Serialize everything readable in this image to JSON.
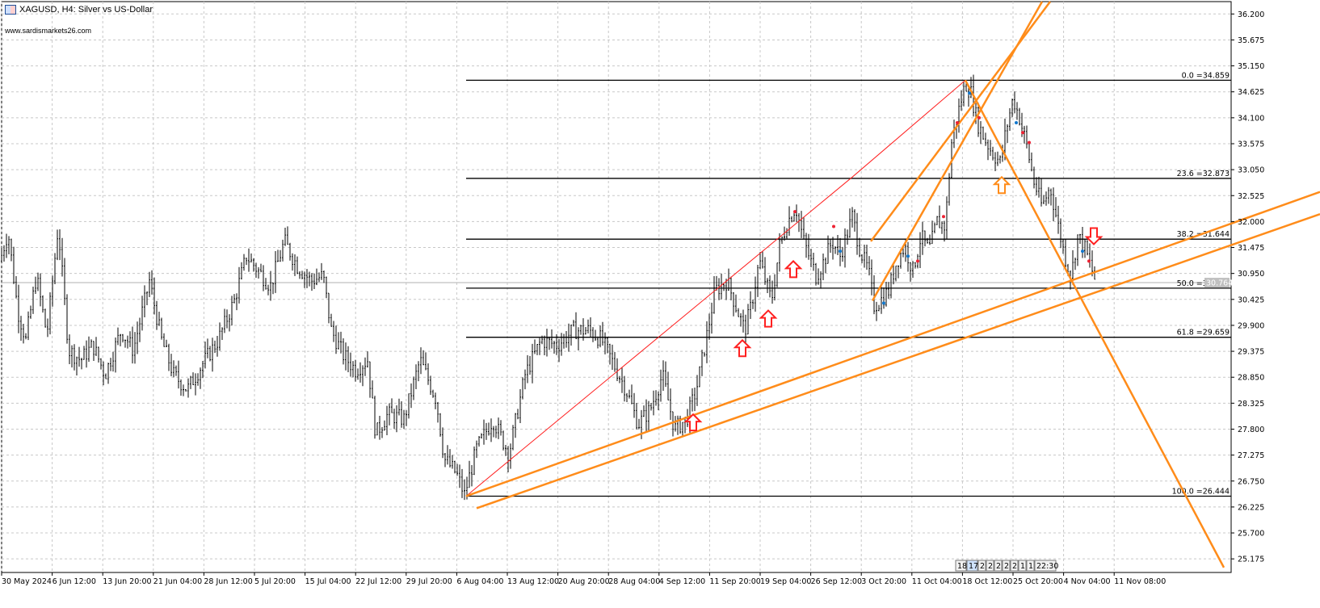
{
  "header": {
    "title": "XAGUSD, H4:  Silver vs US-Dollar",
    "website": "www.sardismarkets26.com"
  },
  "chart_data": {
    "type": "candlestick",
    "symbol": "XAGUSD",
    "timeframe": "H4",
    "ylim": [
      24.9,
      36.45
    ],
    "y_ticks": [
      "36.200",
      "35.675",
      "35.150",
      "34.625",
      "34.100",
      "33.575",
      "33.050",
      "32.525",
      "32.000",
      "31.475",
      "30.950",
      "30.425",
      "29.900",
      "29.375",
      "28.850",
      "28.325",
      "27.800",
      "27.275",
      "26.750",
      "26.225",
      "25.700",
      "25.175"
    ],
    "x_ticks": [
      "30 May 2024",
      "6 Jun 12:00",
      "13 Jun 20:00",
      "21 Jun 04:00",
      "28 Jun 12:00",
      "5 Jul 20:00",
      "15 Jul 04:00",
      "22 Jul 12:00",
      "29 Jul 20:00",
      "6 Aug 04:00",
      "13 Aug 12:00",
      "20 Aug 20:00",
      "28 Aug 04:00",
      "4 Sep 12:00",
      "11 Sep 20:00",
      "19 Sep 04:00",
      "26 Sep 12:00",
      "3 Oct 20:00",
      "11 Oct 04:00",
      "18 Oct 12:00",
      "25 Oct 20:00",
      "4 Nov 04:00",
      "11 Nov 08:00"
    ],
    "current_price": "30.764",
    "current_price_value": 30.764,
    "price_path": [
      [
        0,
        31.2
      ],
      [
        10,
        31.8
      ],
      [
        22,
        30.2
      ],
      [
        32,
        29.6
      ],
      [
        45,
        30.9
      ],
      [
        58,
        29.7
      ],
      [
        72,
        31.9
      ],
      [
        85,
        29.4
      ],
      [
        100,
        29.2
      ],
      [
        115,
        29.5
      ],
      [
        130,
        28.9
      ],
      [
        150,
        29.8
      ],
      [
        165,
        29.4
      ],
      [
        185,
        30.8
      ],
      [
        200,
        29.6
      ],
      [
        215,
        28.9
      ],
      [
        232,
        28.6
      ],
      [
        250,
        29.1
      ],
      [
        270,
        29.6
      ],
      [
        290,
        30.4
      ],
      [
        305,
        31.3
      ],
      [
        320,
        31.0
      ],
      [
        335,
        30.7
      ],
      [
        352,
        31.6
      ],
      [
        368,
        31.1
      ],
      [
        385,
        30.8
      ],
      [
        400,
        30.9
      ],
      [
        410,
        29.8
      ],
      [
        425,
        29.3
      ],
      [
        440,
        29.0
      ],
      [
        455,
        29.2
      ],
      [
        465,
        27.7
      ],
      [
        480,
        28.1
      ],
      [
        500,
        28.0
      ],
      [
        520,
        29.2
      ],
      [
        540,
        28.4
      ],
      [
        550,
        27.2
      ],
      [
        565,
        26.9
      ],
      [
        575,
        26.47
      ],
      [
        590,
        27.4
      ],
      [
        610,
        28.0
      ],
      [
        630,
        27.3
      ],
      [
        650,
        28.9
      ],
      [
        670,
        29.6
      ],
      [
        690,
        29.5
      ],
      [
        710,
        29.8
      ],
      [
        730,
        29.8
      ],
      [
        745,
        29.6
      ],
      [
        760,
        29.1
      ],
      [
        775,
        28.6
      ],
      [
        790,
        27.9
      ],
      [
        805,
        28.2
      ],
      [
        820,
        28.9
      ],
      [
        835,
        27.8
      ],
      [
        850,
        28.0
      ],
      [
        862,
        28.6
      ],
      [
        875,
        29.7
      ],
      [
        885,
        30.6
      ],
      [
        900,
        30.8
      ],
      [
        915,
        30.1
      ],
      [
        922,
        29.8
      ],
      [
        930,
        30.3
      ],
      [
        940,
        31.2
      ],
      [
        955,
        30.4
      ],
      [
        965,
        31.5
      ],
      [
        975,
        32.0
      ],
      [
        985,
        32.3
      ],
      [
        995,
        31.6
      ],
      [
        1010,
        30.9
      ],
      [
        1020,
        31.2
      ],
      [
        1030,
        31.6
      ],
      [
        1040,
        31.3
      ],
      [
        1055,
        32.1
      ],
      [
        1065,
        31.4
      ],
      [
        1075,
        31.0
      ],
      [
        1082,
        30.3
      ],
      [
        1090,
        30.4
      ],
      [
        1100,
        30.6
      ],
      [
        1110,
        31.2
      ],
      [
        1120,
        31.5
      ],
      [
        1130,
        31.0
      ],
      [
        1140,
        31.7
      ],
      [
        1150,
        31.4
      ],
      [
        1160,
        32.0
      ],
      [
        1170,
        31.9
      ],
      [
        1178,
        33.6
      ],
      [
        1186,
        34.2
      ],
      [
        1195,
        34.8
      ],
      [
        1202,
        34.6
      ],
      [
        1210,
        34.0
      ],
      [
        1218,
        33.7
      ],
      [
        1228,
        33.4
      ],
      [
        1238,
        33.2
      ],
      [
        1246,
        33.9
      ],
      [
        1254,
        34.5
      ],
      [
        1262,
        34.1
      ],
      [
        1270,
        33.6
      ],
      [
        1280,
        32.8
      ],
      [
        1290,
        32.3
      ],
      [
        1300,
        32.7
      ],
      [
        1310,
        31.9
      ],
      [
        1318,
        31.3
      ],
      [
        1326,
        30.9
      ],
      [
        1334,
        31.7
      ],
      [
        1342,
        31.5
      ],
      [
        1350,
        31.1
      ],
      [
        1356,
        30.8
      ]
    ],
    "fibonacci": [
      {
        "label": "0.0 =34.859",
        "value": 34.859
      },
      {
        "label": "23.6 =32.873",
        "value": 32.873
      },
      {
        "label": "38.2 =31.644",
        "value": 31.644
      },
      {
        "label": "50.0 =30.652",
        "value": 30.652
      },
      {
        "label": "61.8 =29.659",
        "value": 29.659
      },
      {
        "label": "100.0 =26.444",
        "value": 26.444
      }
    ],
    "fib_x_start": 577,
    "zigzag_red": [
      [
        577,
        26.444
      ],
      [
        1055,
        32.9
      ],
      [
        1195,
        34.859
      ]
    ],
    "channels_orange": [
      [
        [
          577,
          26.444
        ],
        [
          1634,
          32.6
        ]
      ],
      [
        [
          590,
          26.2
        ],
        [
          1634,
          32.15
        ]
      ],
      [
        [
          1078,
          31.6
        ],
        [
          1300,
          36.45
        ]
      ],
      [
        [
          1080,
          30.4
        ],
        [
          1290,
          36.45
        ]
      ],
      [
        [
          1195,
          34.859
        ],
        [
          1515,
          25.0
        ]
      ]
    ],
    "arrows_up_red": [
      [
        858,
        28.1
      ],
      [
        919,
        29.6
      ],
      [
        951,
        30.2
      ],
      [
        982,
        31.2
      ]
    ],
    "arrows_up_orange": [
      [
        1240,
        32.9
      ]
    ],
    "arrows_down_red": [
      [
        1354,
        31.9
      ]
    ],
    "period_buttons": [
      "18",
      "17",
      "2",
      "2",
      "2",
      "2",
      "2",
      "1",
      "1",
      "22:30"
    ]
  }
}
